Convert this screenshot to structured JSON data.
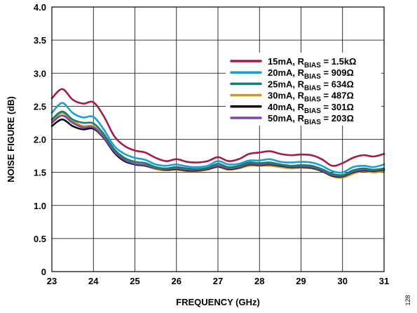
{
  "chart_data": {
    "type": "line",
    "xlabel": "FREQUENCY (GHz)",
    "ylabel": "NOISE FIGURE (dB)",
    "xlim": [
      23,
      31
    ],
    "ylim": [
      0,
      4.0
    ],
    "x_ticks": [
      "23",
      "24",
      "25",
      "26",
      "27",
      "28",
      "29",
      "30",
      "31"
    ],
    "y_ticks": [
      "0",
      "0.5",
      "1.0",
      "1.5",
      "2.0",
      "2.5",
      "3.0",
      "3.5",
      "4.0"
    ],
    "grid": true,
    "legend_position": "top-right",
    "x": [
      23.0,
      23.25,
      23.5,
      23.75,
      24.0,
      24.25,
      24.5,
      24.75,
      25.0,
      25.25,
      25.5,
      25.75,
      26.0,
      26.25,
      26.5,
      26.75,
      27.0,
      27.25,
      27.5,
      27.75,
      28.0,
      28.25,
      28.5,
      28.75,
      29.0,
      29.25,
      29.5,
      29.75,
      30.0,
      30.25,
      30.5,
      30.75,
      31.0
    ],
    "series": [
      {
        "name_main": "15mA, R",
        "name_sub": "BIAS",
        "name_tail": " = 1.5kΩ",
        "color": "#a51c4b",
        "values": [
          2.62,
          2.76,
          2.6,
          2.54,
          2.56,
          2.35,
          2.05,
          1.9,
          1.83,
          1.8,
          1.72,
          1.67,
          1.7,
          1.66,
          1.65,
          1.67,
          1.73,
          1.67,
          1.7,
          1.78,
          1.8,
          1.82,
          1.78,
          1.76,
          1.77,
          1.76,
          1.7,
          1.6,
          1.64,
          1.72,
          1.76,
          1.74,
          1.78
        ]
      },
      {
        "name_main": "20mA, R",
        "name_sub": "BIAS",
        "name_tail": " = 909Ω",
        "color": "#1ba0d6",
        "values": [
          2.4,
          2.55,
          2.4,
          2.33,
          2.34,
          2.15,
          1.9,
          1.78,
          1.72,
          1.69,
          1.62,
          1.6,
          1.62,
          1.59,
          1.58,
          1.6,
          1.67,
          1.62,
          1.63,
          1.68,
          1.68,
          1.7,
          1.66,
          1.65,
          1.66,
          1.65,
          1.6,
          1.52,
          1.5,
          1.58,
          1.6,
          1.58,
          1.62
        ]
      },
      {
        "name_main": "25mA, R",
        "name_sub": "BIAS",
        "name_tail": " = 634Ω",
        "color": "#12806e",
        "values": [
          2.3,
          2.42,
          2.3,
          2.25,
          2.24,
          2.08,
          1.85,
          1.72,
          1.66,
          1.64,
          1.58,
          1.56,
          1.58,
          1.56,
          1.55,
          1.57,
          1.63,
          1.58,
          1.6,
          1.65,
          1.64,
          1.65,
          1.62,
          1.6,
          1.61,
          1.6,
          1.55,
          1.48,
          1.46,
          1.53,
          1.56,
          1.54,
          1.56
        ]
      },
      {
        "name_main": "30mA, R",
        "name_sub": "BIAS",
        "name_tail": " = 487Ω",
        "color": "#c79a2e",
        "values": [
          2.28,
          2.4,
          2.28,
          2.2,
          2.2,
          2.04,
          1.82,
          1.68,
          1.62,
          1.6,
          1.55,
          1.53,
          1.54,
          1.52,
          1.52,
          1.54,
          1.58,
          1.54,
          1.56,
          1.6,
          1.6,
          1.6,
          1.58,
          1.56,
          1.57,
          1.56,
          1.52,
          1.44,
          1.42,
          1.48,
          1.52,
          1.5,
          1.52
        ]
      },
      {
        "name_main": "40mA, R",
        "name_sub": "BIAS",
        "name_tail": " = 301Ω",
        "color": "#111111",
        "values": [
          2.2,
          2.3,
          2.2,
          2.15,
          2.16,
          2.02,
          1.8,
          1.67,
          1.62,
          1.6,
          1.56,
          1.54,
          1.55,
          1.53,
          1.53,
          1.55,
          1.59,
          1.55,
          1.57,
          1.62,
          1.61,
          1.62,
          1.6,
          1.58,
          1.58,
          1.57,
          1.52,
          1.45,
          1.44,
          1.5,
          1.53,
          1.52,
          1.54
        ]
      },
      {
        "name_main": "50mA, R",
        "name_sub": "BIAS",
        "name_tail": " = 203Ω",
        "color": "#7b4a9e",
        "values": [
          2.25,
          2.36,
          2.25,
          2.18,
          2.18,
          2.03,
          1.82,
          1.69,
          1.63,
          1.61,
          1.56,
          1.55,
          1.56,
          1.54,
          1.54,
          1.56,
          1.6,
          1.56,
          1.58,
          1.63,
          1.62,
          1.63,
          1.61,
          1.59,
          1.59,
          1.58,
          1.53,
          1.46,
          1.45,
          1.51,
          1.54,
          1.53,
          1.55
        ]
      }
    ],
    "figure_id": "128"
  }
}
